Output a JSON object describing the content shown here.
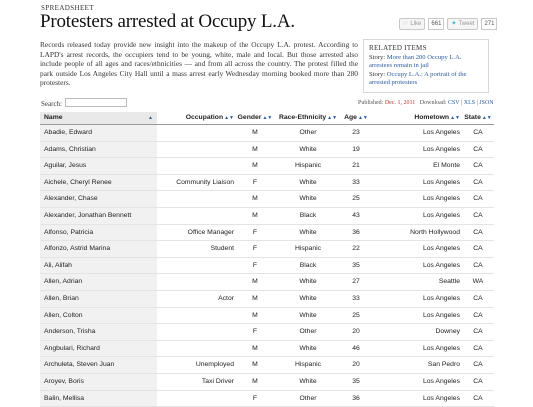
{
  "kicker": "SPREADSHEET",
  "headline": "Protesters arrested at Occupy L.A.",
  "social": {
    "like_label": "Like",
    "like_count": "661",
    "tweet_label": "Tweet",
    "tweet_count": "271"
  },
  "intro": "Records released today provide new insight into the makeup of the Occupy L.A. protest. According to LAPD's arrest records, the occupiers tend to be young, white, male and local. But those arrested also include people of all ages and races/ethnicities — and from all across the country. The protest filled the park outside Los Angeles City Hall until a mass arrest early Wednesday morning booked more than 280 protesters.",
  "related": {
    "title": "RELATED ITEMS",
    "items": [
      {
        "prefix": "Story:",
        "link": "More than 200 Occupy L.A. arrestees remain in jail"
      },
      {
        "prefix": "Story:",
        "link": "Occupy L.A.: A portrait of the arrested protesters"
      }
    ]
  },
  "search": {
    "label": "Search:",
    "value": ""
  },
  "meta": {
    "published_label": "Published:",
    "published_date": "Dec. 1, 2011",
    "download_label": "Download:",
    "csv": "CSV",
    "xls": "XLS",
    "json": "JSON",
    "sep": "|"
  },
  "table": {
    "headers": {
      "name": "Name",
      "occupation": "Occupation",
      "gender": "Gender",
      "race": "Race-Ethnicity",
      "age": "Age",
      "hometown": "Hometown",
      "state": "State"
    },
    "rows": [
      [
        "Abadie, Edward",
        "",
        "M",
        "Other",
        "23",
        "Los Angeles",
        "CA"
      ],
      [
        "Adams, Christian",
        "",
        "M",
        "White",
        "19",
        "Los Angeles",
        "CA"
      ],
      [
        "Aguilar, Jesus",
        "",
        "M",
        "Hispanic",
        "21",
        "El Monte",
        "CA"
      ],
      [
        "Aichele, Cheryl Renee",
        "Community Liaison",
        "F",
        "White",
        "33",
        "Los Angeles",
        "CA"
      ],
      [
        "Alexander, Chase",
        "",
        "M",
        "White",
        "25",
        "Los Angeles",
        "CA"
      ],
      [
        "Alexander, Jonathan Bennett",
        "",
        "M",
        "Black",
        "43",
        "Los Angeles",
        "CA"
      ],
      [
        "Alfonso, Patricia",
        "Office Manager",
        "F",
        "White",
        "36",
        "North Hollywood",
        "CA"
      ],
      [
        "Alfonzo, Astrid Marina",
        "Student",
        "F",
        "Hispanic",
        "22",
        "Los Angeles",
        "CA"
      ],
      [
        "Ali, Alifah",
        "",
        "F",
        "Black",
        "35",
        "Los Angeles",
        "CA"
      ],
      [
        "Allen, Adrian",
        "",
        "M",
        "White",
        "27",
        "Seattle",
        "WA"
      ],
      [
        "Allen, Brian",
        "Actor",
        "M",
        "White",
        "33",
        "Los Angeles",
        "CA"
      ],
      [
        "Allen, Colton",
        "",
        "M",
        "White",
        "25",
        "Los Angeles",
        "CA"
      ],
      [
        "Anderson, Trisha",
        "",
        "F",
        "Other",
        "20",
        "Downey",
        "CA"
      ],
      [
        "Angbulari, Richard",
        "",
        "M",
        "White",
        "46",
        "Los Angeles",
        "CA"
      ],
      [
        "Archuleta, Steven Juan",
        "Unemployed",
        "M",
        "Hispanic",
        "20",
        "San Pedro",
        "CA"
      ],
      [
        "Aroyev, Boris",
        "Taxi Driver",
        "M",
        "White",
        "35",
        "Los Angeles",
        "CA"
      ],
      [
        "Balin, Mellisa",
        "",
        "F",
        "Other",
        "36",
        "Los Angeles",
        "CA"
      ]
    ]
  },
  "icons": {
    "sort_both": "▲▼",
    "sort_asc": "▲",
    "like": "✋",
    "tweet": "❦"
  }
}
